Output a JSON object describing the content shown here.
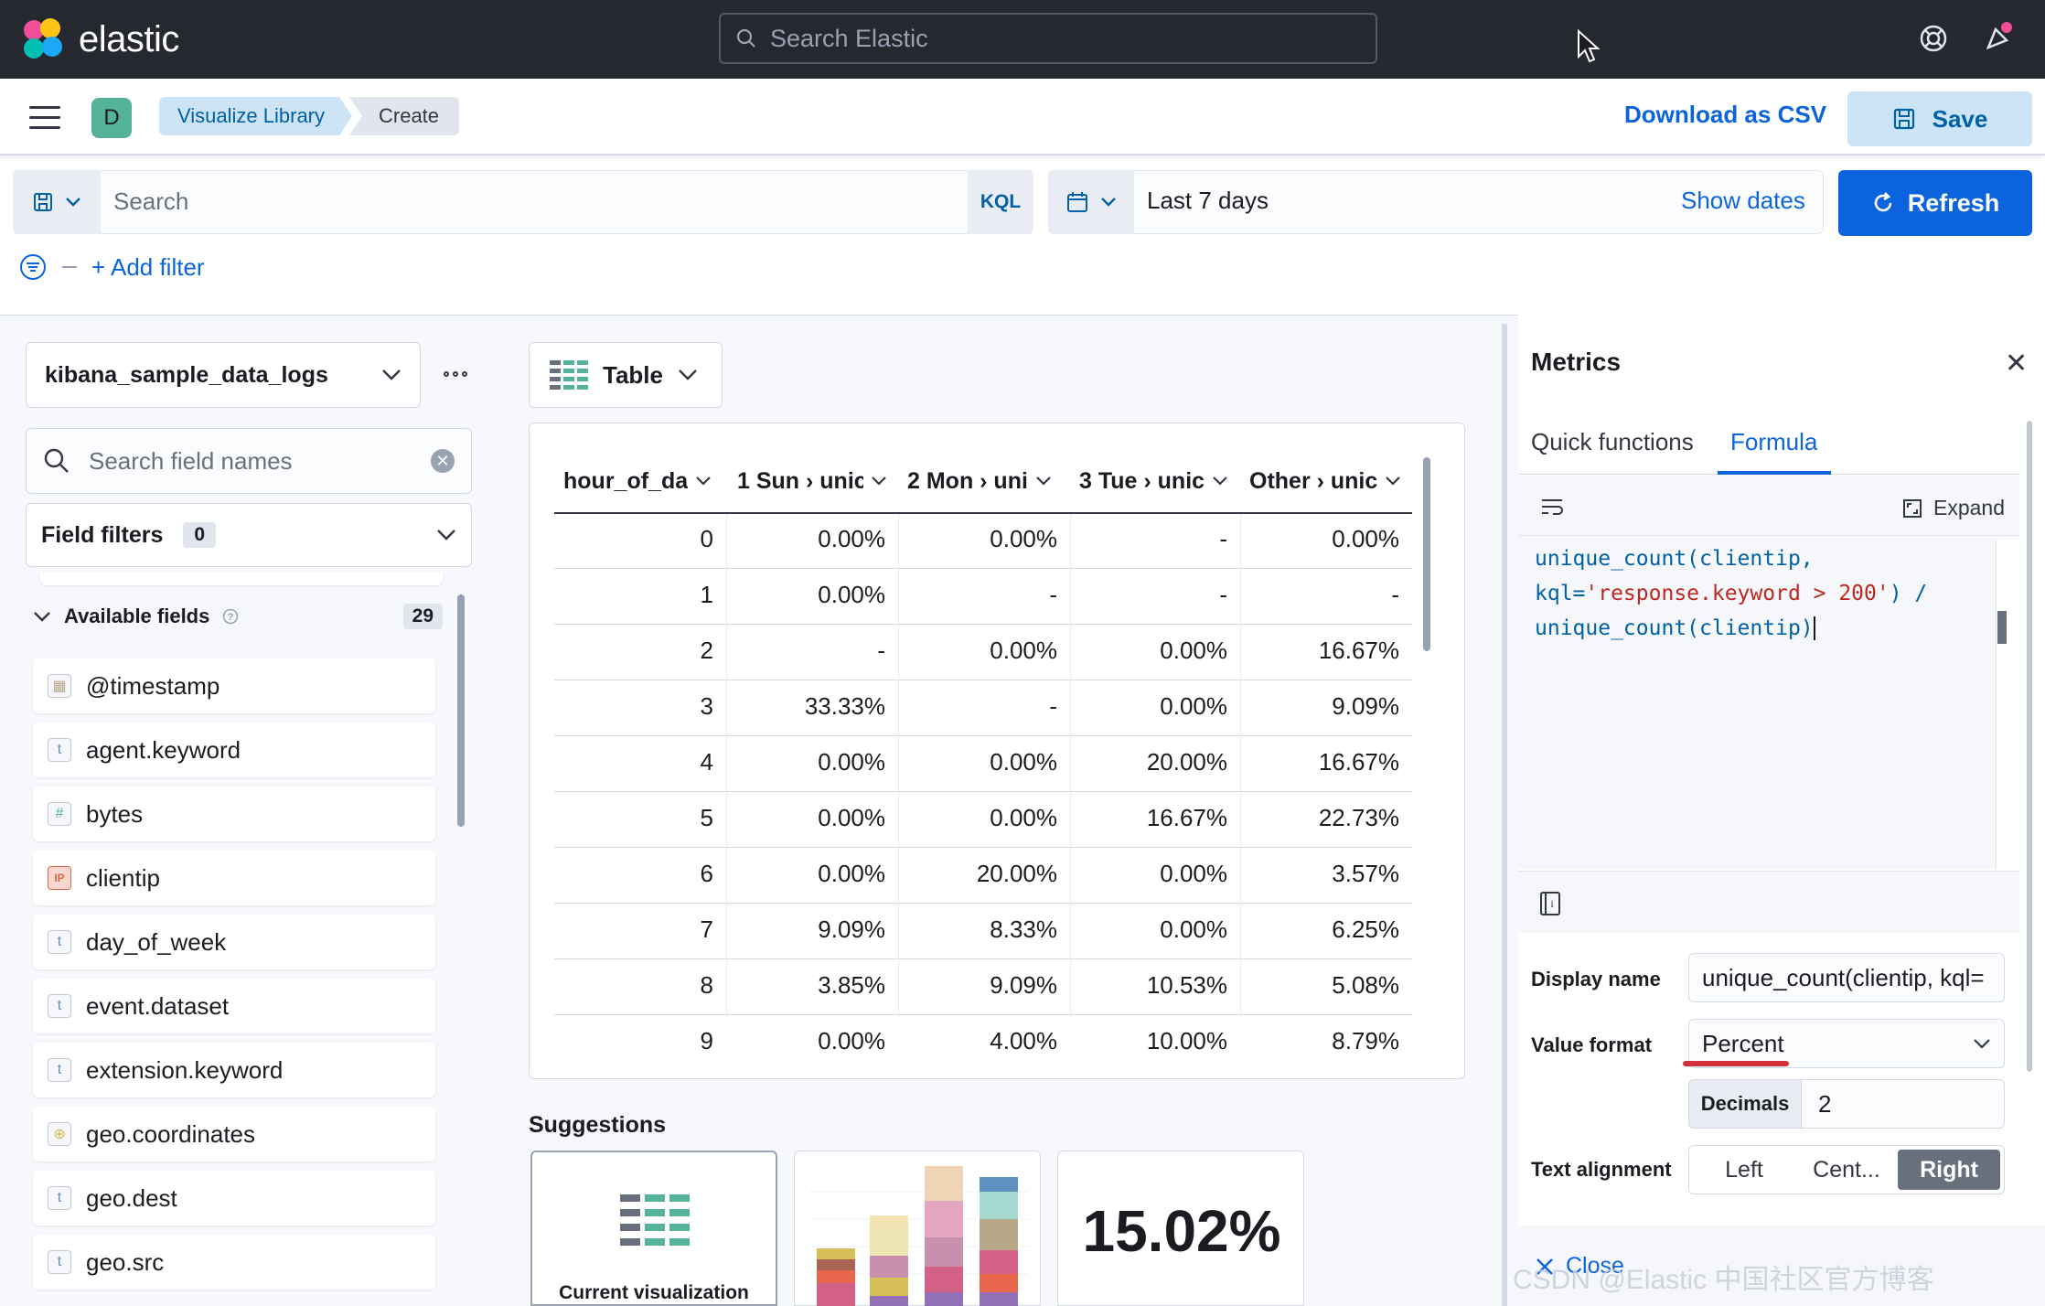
{
  "header": {
    "brand": "elastic",
    "search_placeholder": "Search Elastic"
  },
  "nav": {
    "avatar_letter": "D",
    "breadcrumbs": [
      "Visualize Library",
      "Create"
    ],
    "download_csv": "Download as CSV",
    "save": "Save"
  },
  "query": {
    "placeholder": "Search",
    "language": "KQL",
    "date_range": "Last 7 days",
    "show_dates": "Show dates",
    "refresh": "Refresh",
    "add_filter": "+ Add filter"
  },
  "sidebar": {
    "index_pattern": "kibana_sample_data_logs",
    "field_search_placeholder": "Search field names",
    "field_filters_label": "Field filters",
    "field_filters_count": "0",
    "available_label": "Available fields",
    "available_count": "29",
    "fields": [
      {
        "name": "@timestamp",
        "type": "date"
      },
      {
        "name": "agent.keyword",
        "type": "t"
      },
      {
        "name": "bytes",
        "type": "#"
      },
      {
        "name": "clientip",
        "type": "IP"
      },
      {
        "name": "day_of_week",
        "type": "t"
      },
      {
        "name": "event.dataset",
        "type": "t"
      },
      {
        "name": "extension.keyword",
        "type": "t"
      },
      {
        "name": "geo.coordinates",
        "type": "geo"
      },
      {
        "name": "geo.dest",
        "type": "t"
      },
      {
        "name": "geo.src",
        "type": "t"
      }
    ]
  },
  "workspace": {
    "chart_type": "Table",
    "table": {
      "columns": [
        "hour_of_da",
        "1 Sun › unic",
        "2 Mon › uni",
        "3 Tue › unic",
        "Other › unic"
      ],
      "rows": [
        [
          "0",
          "0.00%",
          "0.00%",
          "-",
          "0.00%"
        ],
        [
          "1",
          "0.00%",
          "-",
          "-",
          "-"
        ],
        [
          "2",
          "-",
          "0.00%",
          "0.00%",
          "16.67%"
        ],
        [
          "3",
          "33.33%",
          "-",
          "0.00%",
          "9.09%"
        ],
        [
          "4",
          "0.00%",
          "0.00%",
          "20.00%",
          "16.67%"
        ],
        [
          "5",
          "0.00%",
          "0.00%",
          "16.67%",
          "22.73%"
        ],
        [
          "6",
          "0.00%",
          "20.00%",
          "0.00%",
          "3.57%"
        ],
        [
          "7",
          "9.09%",
          "8.33%",
          "0.00%",
          "6.25%"
        ],
        [
          "8",
          "3.85%",
          "9.09%",
          "10.53%",
          "5.08%"
        ],
        [
          "9",
          "0.00%",
          "4.00%",
          "10.00%",
          "8.79%"
        ]
      ]
    },
    "suggestions_title": "Suggestions",
    "suggestion_current": "Current visualization",
    "suggestion_metric": "15.02%"
  },
  "flyout": {
    "title": "Metrics",
    "tabs": [
      "Quick functions",
      "Formula"
    ],
    "expand": "Expand",
    "formula_lines": [
      "unique_count(clientip,",
      "kql=",
      "'response.keyword > 200'",
      ") /",
      "unique_count(clientip)"
    ],
    "display_name_label": "Display name",
    "display_name_value": "unique_count(clientip, kql=",
    "value_format_label": "Value format",
    "value_format_value": "Percent",
    "decimals_label": "Decimals",
    "decimals_value": "2",
    "text_alignment_label": "Text alignment",
    "alignments": [
      "Left",
      "Cent...",
      "Right"
    ],
    "close": "Close",
    "watermark": "CSDN @Elastic 中国社区官方博客"
  },
  "colors": {
    "accent": "#0b64dd",
    "header_bg": "#25282f",
    "highlight_red": "#d6303f"
  }
}
